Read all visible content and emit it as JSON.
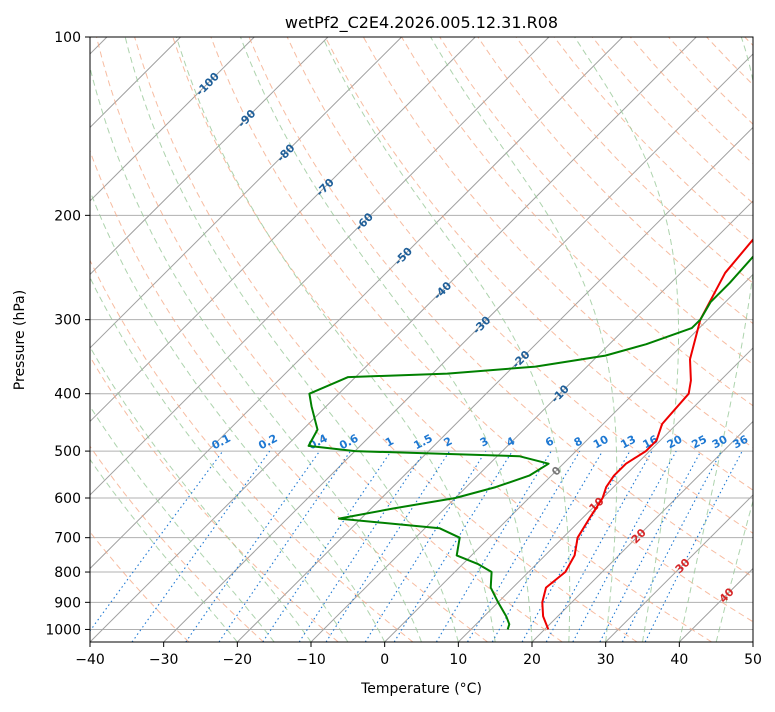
{
  "chart_data": {
    "type": "line",
    "chart_kind": "skew-T log-P",
    "title": "wetPf2_C2E4.2026.005.12.31.R08",
    "xlabel": "Temperature (°C)",
    "ylabel": "Pressure (hPa)",
    "xlim": [
      -40,
      50
    ],
    "ylim": [
      1050,
      100
    ],
    "x_ticks": [
      "−40",
      "−30",
      "−20",
      "−10",
      "0",
      "10",
      "20",
      "30",
      "40",
      "50"
    ],
    "x_tick_values": [
      -40,
      -30,
      -20,
      -10,
      0,
      10,
      20,
      30,
      40,
      50
    ],
    "y_ticks": [
      "100",
      "200",
      "300",
      "400",
      "500",
      "600",
      "700",
      "800",
      "900",
      "1000"
    ],
    "y_tick_values": [
      100,
      200,
      300,
      400,
      500,
      600,
      700,
      800,
      900,
      1000
    ],
    "series": [
      {
        "name": "Temperature",
        "color": "#ee0000",
        "points": [
          [
            20.5,
            1000
          ],
          [
            18,
            950
          ],
          [
            16,
            900
          ],
          [
            14.5,
            850
          ],
          [
            15,
            800
          ],
          [
            14,
            750
          ],
          [
            12,
            700
          ],
          [
            11,
            650
          ],
          [
            10,
            600
          ],
          [
            9,
            575
          ],
          [
            8.5,
            550
          ],
          [
            8.5,
            525
          ],
          [
            9.5,
            500
          ],
          [
            9.5,
            480
          ],
          [
            8,
            450
          ],
          [
            7.5,
            400
          ],
          [
            6,
            380
          ],
          [
            3,
            350
          ],
          [
            -1,
            300
          ],
          [
            -4,
            250
          ],
          [
            -5,
            210
          ],
          [
            -3,
            190
          ],
          [
            -2,
            175
          ],
          [
            0,
            160
          ],
          [
            4,
            145
          ],
          [
            10,
            130
          ],
          [
            13,
            120
          ],
          [
            15,
            110
          ],
          [
            15.5,
            100
          ]
        ]
      },
      {
        "name": "Dewpoint",
        "color": "#008000",
        "points": [
          [
            15,
            1000
          ],
          [
            14.5,
            980
          ],
          [
            13,
            950
          ],
          [
            10,
            900
          ],
          [
            7,
            850
          ],
          [
            5,
            800
          ],
          [
            2,
            775
          ],
          [
            -2,
            750
          ],
          [
            -4,
            700
          ],
          [
            -8,
            675
          ],
          [
            -23,
            650
          ],
          [
            -17,
            625
          ],
          [
            -10,
            600
          ],
          [
            -6,
            575
          ],
          [
            -3,
            550
          ],
          [
            -2,
            525
          ],
          [
            -7,
            510
          ],
          [
            -30,
            500
          ],
          [
            -37,
            490
          ],
          [
            -38,
            460
          ],
          [
            -42,
            420
          ],
          [
            -44,
            400
          ],
          [
            -41,
            375
          ],
          [
            -28,
            370
          ],
          [
            -17,
            360
          ],
          [
            -9,
            345
          ],
          [
            -5,
            330
          ],
          [
            -1,
            310
          ],
          [
            -1,
            300
          ],
          [
            -2,
            280
          ],
          [
            -2,
            260
          ],
          [
            -2.5,
            230
          ],
          [
            -3.5,
            200
          ],
          [
            -4,
            190
          ],
          [
            -4.5,
            170
          ],
          [
            -6,
            150
          ],
          [
            -7.5,
            130
          ],
          [
            -6,
            120
          ],
          [
            -2,
            110
          ],
          [
            -0.5,
            100
          ]
        ]
      }
    ],
    "dry_adiabat_labels": [
      "-100",
      "-90",
      "-80",
      "-70",
      "-60",
      "-50",
      "-40",
      "-30",
      "-20",
      "-10"
    ],
    "mixing_ratio_labels": [
      "0.1",
      "0.2",
      "0.4",
      "0.6",
      "1",
      "1.5",
      "2",
      "3",
      "4",
      "6",
      "8",
      "10",
      "13",
      "16",
      "20",
      "25",
      "30",
      "36"
    ],
    "moist_adiabat_labels": [
      "0",
      "10",
      "20",
      "30",
      "40"
    ],
    "colors": {
      "temperature": "#ee0000",
      "dewpoint": "#008000",
      "dry_adiabat": "#f4a582",
      "moist_adiabat": "#98c898",
      "mixing_ratio": "#1e78d2",
      "isotherm": "#808080",
      "dry_label": "#1f5f99",
      "moist_label": "#d62728",
      "zero_label": "#777777"
    }
  }
}
